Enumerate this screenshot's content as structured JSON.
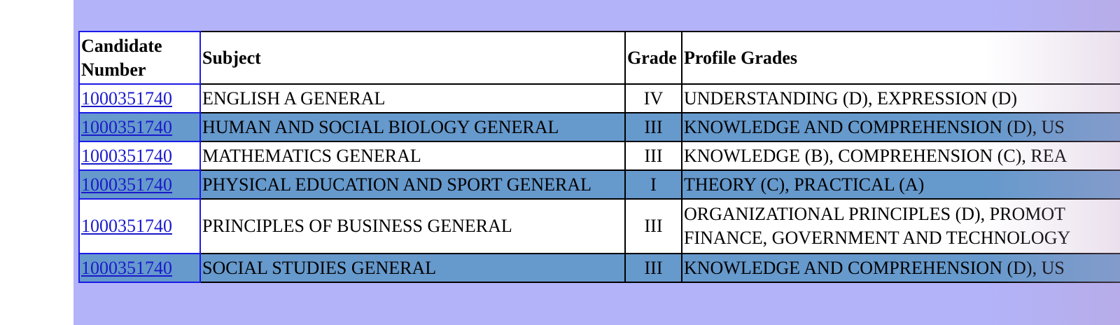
{
  "table": {
    "headers": [
      "Candidate Number",
      "Subject",
      "Grade",
      "Profile Grades"
    ],
    "rows": [
      [
        "1000351740",
        "ENGLISH A GENERAL",
        "IV",
        [
          "UNDERSTANDING (D), EXPRESSION (D)"
        ]
      ],
      [
        "1000351740",
        "HUMAN AND SOCIAL BIOLOGY GENERAL",
        "III",
        [
          "KNOWLEDGE AND COMPREHENSION (D), US"
        ]
      ],
      [
        "1000351740",
        "MATHEMATICS GENERAL",
        "III",
        [
          "KNOWLEDGE (B), COMPREHENSION (C), REA"
        ]
      ],
      [
        "1000351740",
        "PHYSICAL EDUCATION AND SPORT GENERAL",
        "I",
        [
          "THEORY (C), PRACTICAL (A)"
        ]
      ],
      [
        "1000351740",
        "PRINCIPLES OF BUSINESS GENERAL",
        "III",
        [
          "ORGANIZATIONAL PRINCIPLES (D), PROMOT",
          "FINANCE, GOVERNMENT AND TECHNOLOGY"
        ]
      ],
      [
        "1000351740",
        "SOCIAL STUDIES GENERAL",
        "III",
        [
          "KNOWLEDGE AND COMPREHENSION (D), US"
        ]
      ]
    ]
  }
}
